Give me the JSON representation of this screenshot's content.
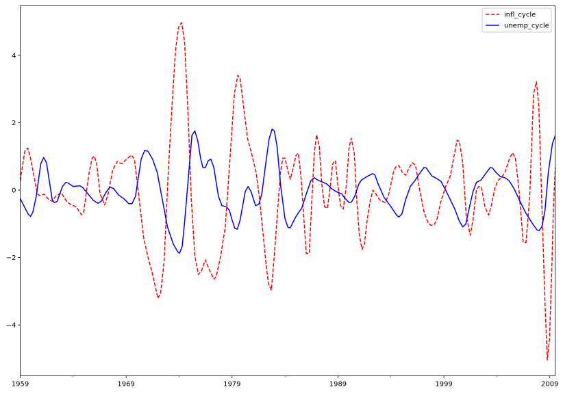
{
  "chart_data": {
    "type": "line",
    "title": "",
    "xlabel": "",
    "ylabel": "",
    "xlim": [
      1959,
      2009.5
    ],
    "ylim": [
      -5.51,
      5.47
    ],
    "x_ticks": [
      1959,
      1969,
      1979,
      1989,
      1999,
      2009
    ],
    "x_tick_labels": [
      "1959",
      "1969",
      "1979",
      "1989",
      "1999",
      "2009"
    ],
    "x_minor_ticks": [
      1964,
      1974,
      1984,
      1994,
      2004
    ],
    "y_ticks": [
      -4,
      -2,
      0,
      2,
      4
    ],
    "y_tick_labels": [
      "−4",
      "−2",
      "0",
      "2",
      "4"
    ],
    "grid": false,
    "legend_position": "top-right",
    "series": [
      {
        "name": "infl_cycle",
        "color": "#ff0000",
        "style": "dashed",
        "points": [
          [
            1959.0,
            0.28
          ],
          [
            1959.43,
            1.16
          ],
          [
            1959.71,
            1.25
          ],
          [
            1959.97,
            0.95
          ],
          [
            1960.62,
            -0.11
          ],
          [
            1960.83,
            -0.16
          ],
          [
            1961.26,
            -0.12
          ],
          [
            1961.69,
            -0.28
          ],
          [
            1962.02,
            -0.33
          ],
          [
            1962.34,
            -0.18
          ],
          [
            1962.88,
            -0.08
          ],
          [
            1963.42,
            -0.35
          ],
          [
            1963.85,
            -0.44
          ],
          [
            1964.28,
            -0.49
          ],
          [
            1964.78,
            -0.73
          ],
          [
            1964.99,
            -0.66
          ],
          [
            1965.47,
            0.46
          ],
          [
            1965.79,
            0.95
          ],
          [
            1966.0,
            1.01
          ],
          [
            1966.22,
            0.78
          ],
          [
            1966.54,
            -0.11
          ],
          [
            1966.97,
            -0.44
          ],
          [
            1967.3,
            -0.11
          ],
          [
            1967.73,
            0.6
          ],
          [
            1968.16,
            0.85
          ],
          [
            1968.59,
            0.78
          ],
          [
            1969.02,
            0.92
          ],
          [
            1969.5,
            1.04
          ],
          [
            1969.78,
            0.92
          ],
          [
            1970.2,
            -0.18
          ],
          [
            1970.64,
            -1.38
          ],
          [
            1971.03,
            -1.94
          ],
          [
            1971.5,
            -2.5
          ],
          [
            1972.0,
            -3.21
          ],
          [
            1972.25,
            -3.07
          ],
          [
            1972.58,
            -2.15
          ],
          [
            1973.0,
            0.67
          ],
          [
            1973.33,
            2.5
          ],
          [
            1973.66,
            4.13
          ],
          [
            1973.94,
            4.83
          ],
          [
            1974.24,
            4.97
          ],
          [
            1974.52,
            4.41
          ],
          [
            1974.84,
            2.29
          ],
          [
            1975.16,
            -0.32
          ],
          [
            1975.49,
            -1.94
          ],
          [
            1975.81,
            -2.5
          ],
          [
            1976.1,
            -2.4
          ],
          [
            1976.48,
            -2.07
          ],
          [
            1976.85,
            -2.36
          ],
          [
            1977.28,
            -2.64
          ],
          [
            1977.5,
            -2.57
          ],
          [
            1977.93,
            -1.94
          ],
          [
            1978.36,
            -1.09
          ],
          [
            1978.79,
            0.88
          ],
          [
            1979.22,
            2.86
          ],
          [
            1979.54,
            3.41
          ],
          [
            1979.76,
            3.31
          ],
          [
            1980.08,
            2.5
          ],
          [
            1980.47,
            1.52
          ],
          [
            1980.84,
            1.09
          ],
          [
            1981.27,
            0.53
          ],
          [
            1981.59,
            -0.25
          ],
          [
            1981.91,
            -1.23
          ],
          [
            1982.24,
            -2.29
          ],
          [
            1982.45,
            -2.79
          ],
          [
            1982.71,
            -2.96
          ],
          [
            1982.99,
            -1.94
          ],
          [
            1983.32,
            -0.53
          ],
          [
            1983.57,
            0.53
          ],
          [
            1983.79,
            0.95
          ],
          [
            1984.0,
            0.95
          ],
          [
            1984.29,
            0.56
          ],
          [
            1984.5,
            0.32
          ],
          [
            1984.78,
            0.67
          ],
          [
            1985.04,
            1.04
          ],
          [
            1985.26,
            1.09
          ],
          [
            1985.51,
            0.39
          ],
          [
            1985.79,
            -0.88
          ],
          [
            1986.01,
            -1.88
          ],
          [
            1986.29,
            -1.88
          ],
          [
            1986.55,
            -0.18
          ],
          [
            1986.76,
            1.09
          ],
          [
            1986.98,
            1.64
          ],
          [
            1987.24,
            1.3
          ],
          [
            1987.47,
            0.18
          ],
          [
            1987.73,
            -0.49
          ],
          [
            1988.01,
            -0.54
          ],
          [
            1988.27,
            0.11
          ],
          [
            1988.49,
            0.78
          ],
          [
            1988.75,
            0.88
          ],
          [
            1988.98,
            0.18
          ],
          [
            1989.24,
            -0.46
          ],
          [
            1989.5,
            -0.56
          ],
          [
            1989.78,
            0.11
          ],
          [
            1990.04,
            1.23
          ],
          [
            1990.25,
            1.54
          ],
          [
            1990.54,
            1.09
          ],
          [
            1990.75,
            -0.18
          ],
          [
            1991.01,
            -1.3
          ],
          [
            1991.27,
            -1.76
          ],
          [
            1991.5,
            -1.59
          ],
          [
            1991.76,
            -0.88
          ],
          [
            1992.04,
            -0.32
          ],
          [
            1992.3,
            0.0
          ],
          [
            1992.58,
            -0.11
          ],
          [
            1992.91,
            -0.28
          ],
          [
            1993.13,
            -0.32
          ],
          [
            1993.45,
            -0.37
          ],
          [
            1993.78,
            -0.14
          ],
          [
            1994.21,
            0.49
          ],
          [
            1994.42,
            0.68
          ],
          [
            1994.75,
            0.73
          ],
          [
            1995.11,
            0.51
          ],
          [
            1995.39,
            0.44
          ],
          [
            1995.72,
            0.67
          ],
          [
            1996.04,
            0.81
          ],
          [
            1996.32,
            0.74
          ],
          [
            1996.69,
            0.04
          ],
          [
            1997.12,
            -0.63
          ],
          [
            1997.48,
            -0.95
          ],
          [
            1997.76,
            -1.04
          ],
          [
            1998.09,
            -1.02
          ],
          [
            1998.35,
            -0.85
          ],
          [
            1998.73,
            -0.32
          ],
          [
            1999.17,
            0.11
          ],
          [
            1999.6,
            0.42
          ],
          [
            1999.92,
            0.95
          ],
          [
            2000.24,
            1.48
          ],
          [
            2000.46,
            1.45
          ],
          [
            2000.78,
            0.81
          ],
          [
            2001.1,
            -0.74
          ],
          [
            2001.49,
            -1.34
          ],
          [
            2001.75,
            -0.88
          ],
          [
            2002.07,
            0.0
          ],
          [
            2002.29,
            0.11
          ],
          [
            2002.55,
            0.08
          ],
          [
            2002.87,
            -0.49
          ],
          [
            2003.22,
            -0.74
          ],
          [
            2003.48,
            -0.46
          ],
          [
            2003.8,
            0.04
          ],
          [
            2004.08,
            0.28
          ],
          [
            2004.45,
            0.39
          ],
          [
            2004.77,
            0.53
          ],
          [
            2005.2,
            0.95
          ],
          [
            2005.48,
            1.11
          ],
          [
            2005.74,
            0.95
          ],
          [
            2006.06,
            0.11
          ],
          [
            2006.49,
            -1.55
          ],
          [
            2006.75,
            -1.55
          ],
          [
            2007.1,
            -0.18
          ],
          [
            2007.46,
            2.86
          ],
          [
            2007.74,
            3.22
          ],
          [
            2007.96,
            2.5
          ],
          [
            2008.26,
            -0.53
          ],
          [
            2008.54,
            -3.35
          ],
          [
            2008.76,
            -5.04
          ],
          [
            2008.97,
            -4.41
          ],
          [
            2009.19,
            -2.29
          ],
          [
            2009.34,
            -0.53
          ],
          [
            2009.51,
            0.67
          ]
        ]
      },
      {
        "name": "unemp_cycle",
        "color": "#0000ff",
        "style": "solid",
        "points": [
          [
            1959.0,
            -0.25
          ],
          [
            1959.75,
            -0.71
          ],
          [
            1959.97,
            -0.78
          ],
          [
            1960.19,
            -0.66
          ],
          [
            1960.51,
            -0.18
          ],
          [
            1960.94,
            0.78
          ],
          [
            1961.22,
            0.97
          ],
          [
            1961.48,
            0.81
          ],
          [
            1962.02,
            -0.28
          ],
          [
            1962.23,
            -0.37
          ],
          [
            1962.49,
            -0.33
          ],
          [
            1962.99,
            0.11
          ],
          [
            1963.31,
            0.23
          ],
          [
            1963.53,
            0.21
          ],
          [
            1964.0,
            0.11
          ],
          [
            1964.65,
            0.13
          ],
          [
            1964.93,
            0.07
          ],
          [
            1965.47,
            -0.14
          ],
          [
            1965.9,
            -0.3
          ],
          [
            1966.33,
            -0.39
          ],
          [
            1966.65,
            -0.33
          ],
          [
            1967.08,
            -0.07
          ],
          [
            1967.47,
            0.09
          ],
          [
            1967.84,
            0.04
          ],
          [
            1968.27,
            -0.14
          ],
          [
            1968.81,
            -0.26
          ],
          [
            1969.24,
            -0.4
          ],
          [
            1969.56,
            -0.4
          ],
          [
            1969.88,
            -0.18
          ],
          [
            1970.42,
            0.92
          ],
          [
            1970.75,
            1.18
          ],
          [
            1971.07,
            1.15
          ],
          [
            1971.5,
            0.92
          ],
          [
            1971.93,
            0.53
          ],
          [
            1972.36,
            -0.18
          ],
          [
            1972.9,
            -1.09
          ],
          [
            1973.44,
            -1.59
          ],
          [
            1973.87,
            -1.83
          ],
          [
            1974.04,
            -1.87
          ],
          [
            1974.3,
            -1.66
          ],
          [
            1974.52,
            -0.95
          ],
          [
            1974.84,
            0.25
          ],
          [
            1975.21,
            1.62
          ],
          [
            1975.49,
            1.76
          ],
          [
            1975.77,
            1.45
          ],
          [
            1976.03,
            0.95
          ],
          [
            1976.24,
            0.67
          ],
          [
            1976.48,
            0.67
          ],
          [
            1976.74,
            0.87
          ],
          [
            1977.0,
            0.92
          ],
          [
            1977.28,
            0.67
          ],
          [
            1977.71,
            -0.18
          ],
          [
            1978.04,
            -0.46
          ],
          [
            1978.47,
            -0.49
          ],
          [
            1978.75,
            -0.6
          ],
          [
            1979.0,
            -0.88
          ],
          [
            1979.26,
            -1.13
          ],
          [
            1979.5,
            -1.16
          ],
          [
            1979.76,
            -0.88
          ],
          [
            1980.25,
            -0.04
          ],
          [
            1980.51,
            0.11
          ],
          [
            1980.79,
            -0.04
          ],
          [
            1981.22,
            -0.46
          ],
          [
            1981.53,
            -0.42
          ],
          [
            1981.81,
            -0.11
          ],
          [
            1982.13,
            0.67
          ],
          [
            1982.5,
            1.52
          ],
          [
            1982.78,
            1.81
          ],
          [
            1982.99,
            1.76
          ],
          [
            1983.25,
            1.3
          ],
          [
            1983.6,
            0.11
          ],
          [
            1984.0,
            -0.85
          ],
          [
            1984.29,
            -1.11
          ],
          [
            1984.5,
            -1.11
          ],
          [
            1985.04,
            -0.78
          ],
          [
            1985.58,
            -0.53
          ],
          [
            1986.01,
            -0.11
          ],
          [
            1986.44,
            0.28
          ],
          [
            1986.76,
            0.37
          ],
          [
            1987.19,
            0.28
          ],
          [
            1987.63,
            0.23
          ],
          [
            1987.95,
            0.18
          ],
          [
            1988.38,
            0.05
          ],
          [
            1988.81,
            -0.04
          ],
          [
            1989.35,
            -0.11
          ],
          [
            1989.67,
            -0.25
          ],
          [
            1990.06,
            -0.37
          ],
          [
            1990.28,
            -0.35
          ],
          [
            1990.58,
            -0.18
          ],
          [
            1990.97,
            0.18
          ],
          [
            1991.22,
            0.3
          ],
          [
            1991.72,
            0.4
          ],
          [
            1992.26,
            0.49
          ],
          [
            1992.47,
            0.46
          ],
          [
            1992.8,
            0.18
          ],
          [
            1993.35,
            -0.21
          ],
          [
            1994.0,
            -0.49
          ],
          [
            1994.53,
            -0.74
          ],
          [
            1994.75,
            -0.8
          ],
          [
            1995.03,
            -0.71
          ],
          [
            1995.39,
            -0.28
          ],
          [
            1995.83,
            0.11
          ],
          [
            1996.26,
            0.28
          ],
          [
            1996.69,
            0.49
          ],
          [
            1997.12,
            0.67
          ],
          [
            1997.33,
            0.66
          ],
          [
            1997.87,
            0.42
          ],
          [
            1998.3,
            0.35
          ],
          [
            1998.73,
            0.26
          ],
          [
            1999.17,
            0.0
          ],
          [
            2000.03,
            -0.56
          ],
          [
            2000.46,
            -0.92
          ],
          [
            2000.78,
            -1.09
          ],
          [
            2001.06,
            -1.01
          ],
          [
            2001.32,
            -0.63
          ],
          [
            2001.75,
            -0.04
          ],
          [
            2002.07,
            0.23
          ],
          [
            2002.51,
            0.3
          ],
          [
            2002.94,
            0.49
          ],
          [
            2003.37,
            0.67
          ],
          [
            2003.58,
            0.66
          ],
          [
            2003.91,
            0.53
          ],
          [
            2004.34,
            0.4
          ],
          [
            2004.77,
            0.37
          ],
          [
            2005.16,
            0.28
          ],
          [
            2005.63,
            0.04
          ],
          [
            2006.17,
            -0.32
          ],
          [
            2006.71,
            -0.67
          ],
          [
            2007.36,
            -0.99
          ],
          [
            2007.79,
            -1.18
          ],
          [
            2008.0,
            -1.2
          ],
          [
            2008.26,
            -1.08
          ],
          [
            2008.54,
            -0.6
          ],
          [
            2008.86,
            0.53
          ],
          [
            2009.25,
            1.38
          ],
          [
            2009.51,
            1.62
          ]
        ]
      }
    ]
  }
}
